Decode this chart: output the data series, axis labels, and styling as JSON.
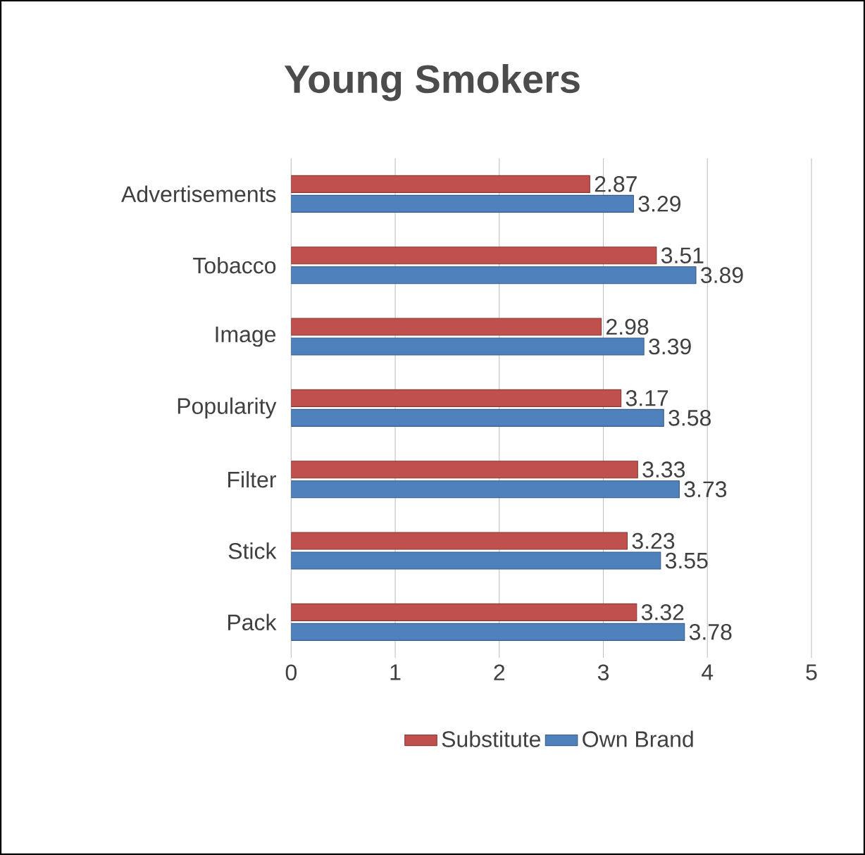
{
  "chart_data": {
    "type": "bar",
    "orientation": "horizontal",
    "title": "Young Smokers",
    "categories": [
      "Advertisements",
      "Tobacco",
      "Image",
      "Popularity",
      "Filter",
      "Stick",
      "Pack"
    ],
    "series": [
      {
        "name": "Substitute",
        "color": "#c0504d",
        "values": [
          2.87,
          3.51,
          2.98,
          3.17,
          3.33,
          3.23,
          3.32
        ]
      },
      {
        "name": "Own Brand",
        "color": "#4f81bd",
        "values": [
          3.29,
          3.89,
          3.39,
          3.58,
          3.73,
          3.55,
          3.78
        ]
      }
    ],
    "xlim": [
      0,
      5
    ],
    "xticks": [
      0,
      1,
      2,
      3,
      4,
      5
    ],
    "grid": "x",
    "legend": "bottom",
    "data_labels": true
  }
}
